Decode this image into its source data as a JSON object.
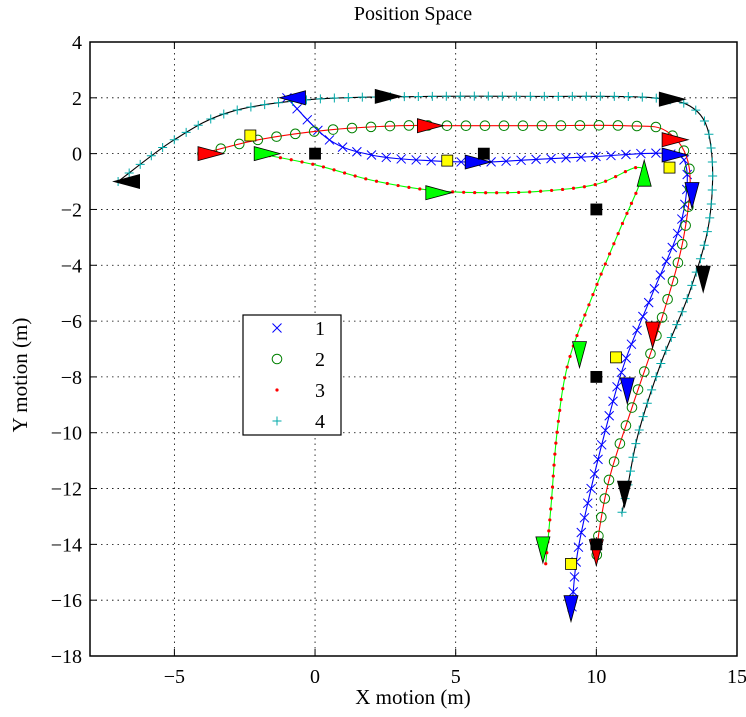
{
  "chart_data": {
    "type": "line",
    "title": "Position Space",
    "xlabel": "X motion (m)",
    "ylabel": "Y motion (m)",
    "xlim": [
      -8,
      15
    ],
    "ylim": [
      -18,
      4
    ],
    "xticks": [
      -5,
      0,
      5,
      10,
      15
    ],
    "yticks": [
      -18,
      -16,
      -14,
      -12,
      -10,
      -8,
      -6,
      -4,
      -2,
      0,
      2,
      4
    ],
    "xtick_labels": [
      "−5",
      "0",
      "5",
      "10",
      "15"
    ],
    "ytick_labels": [
      "−18",
      "−16",
      "−14",
      "−12",
      "−10",
      "−8",
      "−6",
      "−4",
      "−2",
      "0",
      "2",
      "4"
    ],
    "grid": true,
    "legend_position": "center-left",
    "series": [
      {
        "name": "1",
        "marker": "x",
        "marker_color": "#0000ff",
        "line_color": "#0000ff",
        "points": [
          [
            -1,
            2
          ],
          [
            0.5,
            0.5
          ],
          [
            2,
            -0.05
          ],
          [
            4,
            -0.25
          ],
          [
            6,
            -0.3
          ],
          [
            8,
            -0.2
          ],
          [
            10,
            -0.1
          ],
          [
            12.5,
            0
          ],
          [
            13.2,
            -0.5
          ],
          [
            13,
            -2.5
          ],
          [
            12,
            -5
          ],
          [
            11,
            -7.5
          ],
          [
            10.3,
            -10
          ],
          [
            9.7,
            -12.5
          ],
          [
            9.3,
            -14.5
          ],
          [
            9.1,
            -16.7
          ]
        ]
      },
      {
        "name": "2",
        "marker": "o",
        "marker_color": "#008000",
        "line_color": "#ff0000",
        "points": [
          [
            -4,
            0
          ],
          [
            -2,
            0.5
          ],
          [
            0.5,
            0.85
          ],
          [
            3,
            1
          ],
          [
            5,
            1
          ],
          [
            8,
            1
          ],
          [
            11,
            1
          ],
          [
            12.5,
            0.8
          ],
          [
            13.3,
            -0.5
          ],
          [
            13.1,
            -3
          ],
          [
            12.3,
            -6
          ],
          [
            11.3,
            -9
          ],
          [
            10.5,
            -11.5
          ],
          [
            10.1,
            -13.5
          ],
          [
            10,
            -14.7
          ]
        ]
      },
      {
        "name": "3",
        "marker": ".",
        "marker_color": "#ff0000",
        "line_color": "#00ff00",
        "points": [
          [
            -2,
            0
          ],
          [
            0,
            -0.4
          ],
          [
            2,
            -0.95
          ],
          [
            4,
            -1.3
          ],
          [
            6,
            -1.4
          ],
          [
            8,
            -1.35
          ],
          [
            10,
            -1.1
          ],
          [
            11.4,
            -0.5
          ],
          [
            11.6,
            -0.9
          ],
          [
            10.8,
            -2.8
          ],
          [
            9.9,
            -5
          ],
          [
            9,
            -7.5
          ],
          [
            8.6,
            -10
          ],
          [
            8.4,
            -12.5
          ],
          [
            8.2,
            -14.7
          ]
        ]
      },
      {
        "name": "4",
        "marker": "+",
        "marker_color": "#00aaaa",
        "line_color": "#000000",
        "points": [
          [
            -7,
            -1
          ],
          [
            -5,
            0.5
          ],
          [
            -3,
            1.5
          ],
          [
            0,
            1.95
          ],
          [
            4,
            2.05
          ],
          [
            8,
            2.05
          ],
          [
            12,
            2
          ],
          [
            13.6,
            1.5
          ],
          [
            14.1,
            0
          ],
          [
            14,
            -2.5
          ],
          [
            13.3,
            -5
          ],
          [
            12.3,
            -7.5
          ],
          [
            11.5,
            -10
          ],
          [
            11.1,
            -12
          ],
          [
            10.9,
            -12.9
          ]
        ]
      }
    ],
    "triangles": [
      {
        "color": "#0000ff",
        "x": -0.8,
        "y": 2,
        "dir": "left"
      },
      {
        "color": "#0000ff",
        "x": 5.8,
        "y": -0.3,
        "dir": "right"
      },
      {
        "color": "#0000ff",
        "x": 12.8,
        "y": -0.05,
        "dir": "right"
      },
      {
        "color": "#0000ff",
        "x": 13.4,
        "y": -1.5,
        "dir": "down"
      },
      {
        "color": "#0000ff",
        "x": 11.1,
        "y": -8.5,
        "dir": "down"
      },
      {
        "color": "#0000ff",
        "x": 9.1,
        "y": -16.3,
        "dir": "down"
      },
      {
        "color": "#ff0000",
        "x": -3.7,
        "y": 0,
        "dir": "right"
      },
      {
        "color": "#ff0000",
        "x": 4.1,
        "y": 1,
        "dir": "right"
      },
      {
        "color": "#ff0000",
        "x": 12.8,
        "y": 0.5,
        "dir": "right"
      },
      {
        "color": "#ff0000",
        "x": 12,
        "y": -6.5,
        "dir": "down"
      },
      {
        "color": "#ff0000",
        "x": 10,
        "y": -14.3,
        "dir": "down"
      },
      {
        "color": "#00ff00",
        "x": -1.7,
        "y": 0,
        "dir": "right"
      },
      {
        "color": "#00ff00",
        "x": 4.4,
        "y": -1.4,
        "dir": "right"
      },
      {
        "color": "#00ff00",
        "x": 11.7,
        "y": -0.7,
        "dir": "up"
      },
      {
        "color": "#00ff00",
        "x": 9.4,
        "y": -7.2,
        "dir": "down"
      },
      {
        "color": "#00ff00",
        "x": 8.1,
        "y": -14.2,
        "dir": "down"
      },
      {
        "color": "#000000",
        "x": -6.7,
        "y": -1,
        "dir": "left"
      },
      {
        "color": "#000000",
        "x": 2.6,
        "y": 2.05,
        "dir": "right"
      },
      {
        "color": "#000000",
        "x": 12.7,
        "y": 1.95,
        "dir": "right"
      },
      {
        "color": "#000000",
        "x": 13.8,
        "y": -4.5,
        "dir": "down"
      },
      {
        "color": "#000000",
        "x": 11,
        "y": -12.2,
        "dir": "down"
      }
    ],
    "squares": [
      {
        "color": "#ffff00",
        "x": -2.3,
        "y": 0.65
      },
      {
        "color": "#ffff00",
        "x": 4.7,
        "y": -0.25
      },
      {
        "color": "#ffff00",
        "x": 12.6,
        "y": -0.5
      },
      {
        "color": "#ffff00",
        "x": 10.7,
        "y": -7.3
      },
      {
        "color": "#ffff00",
        "x": 9.1,
        "y": -14.7
      },
      {
        "color": "#000000",
        "x": 0,
        "y": 0
      },
      {
        "color": "#000000",
        "x": 6,
        "y": 0
      },
      {
        "color": "#000000",
        "x": 10,
        "y": -2
      },
      {
        "color": "#000000",
        "x": 10,
        "y": -8
      },
      {
        "color": "#000000",
        "x": 10,
        "y": -14
      }
    ]
  }
}
